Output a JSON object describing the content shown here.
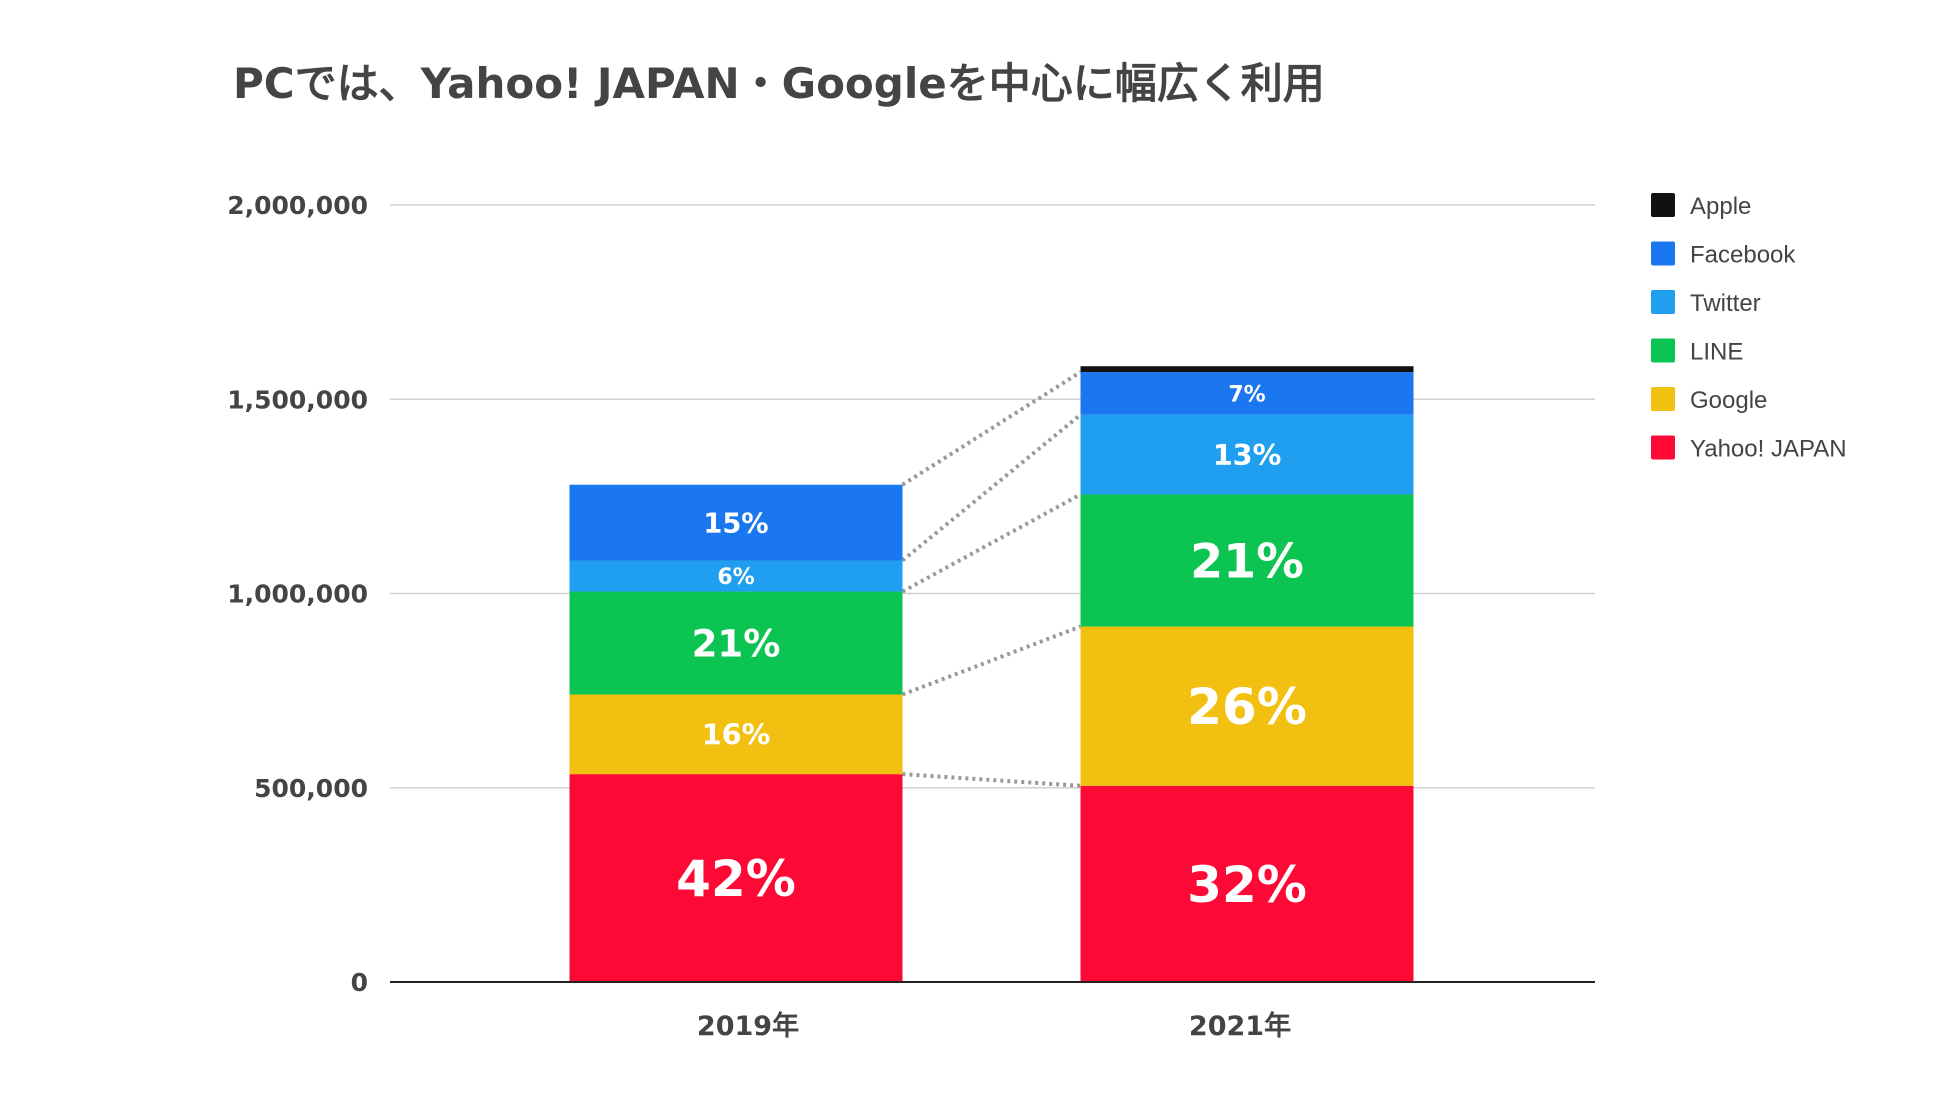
{
  "chart_data": {
    "type": "stacked-bar",
    "title": "PCでは、Yahoo! JAPAN・Googleを中心に幅広く利用",
    "categories": [
      "2019年",
      "2021年"
    ],
    "ylim": [
      0,
      2000000
    ],
    "yticks": [
      0,
      500000,
      1000000,
      1500000,
      2000000
    ],
    "ytick_labels": [
      "0",
      "500,000",
      "1,000,000",
      "1,500,000",
      "2,000,000"
    ],
    "legend_position": "top-right",
    "grid": true,
    "connectors": true,
    "series": [
      {
        "name": "Yahoo! JAPAN",
        "color": "#fc0a35",
        "values": [
          535000,
          505000
        ],
        "labels": [
          "42%",
          "32%"
        ]
      },
      {
        "name": "Google",
        "color": "#f2c010",
        "values": [
          205000,
          410000
        ],
        "labels": [
          "16%",
          "26%"
        ]
      },
      {
        "name": "LINE",
        "color": "#0bc451",
        "values": [
          265000,
          340000
        ],
        "labels": [
          "21%",
          "21%"
        ]
      },
      {
        "name": "Twitter",
        "color": "#209ff0",
        "values": [
          80000,
          205000
        ],
        "labels": [
          "6%",
          "13%"
        ]
      },
      {
        "name": "Facebook",
        "color": "#1a77f0",
        "values": [
          195000,
          110000
        ],
        "labels": [
          "15%",
          "7%"
        ]
      },
      {
        "name": "Apple",
        "color": "#111111",
        "values": [
          0,
          15000
        ],
        "labels": [
          "",
          ""
        ]
      }
    ]
  }
}
